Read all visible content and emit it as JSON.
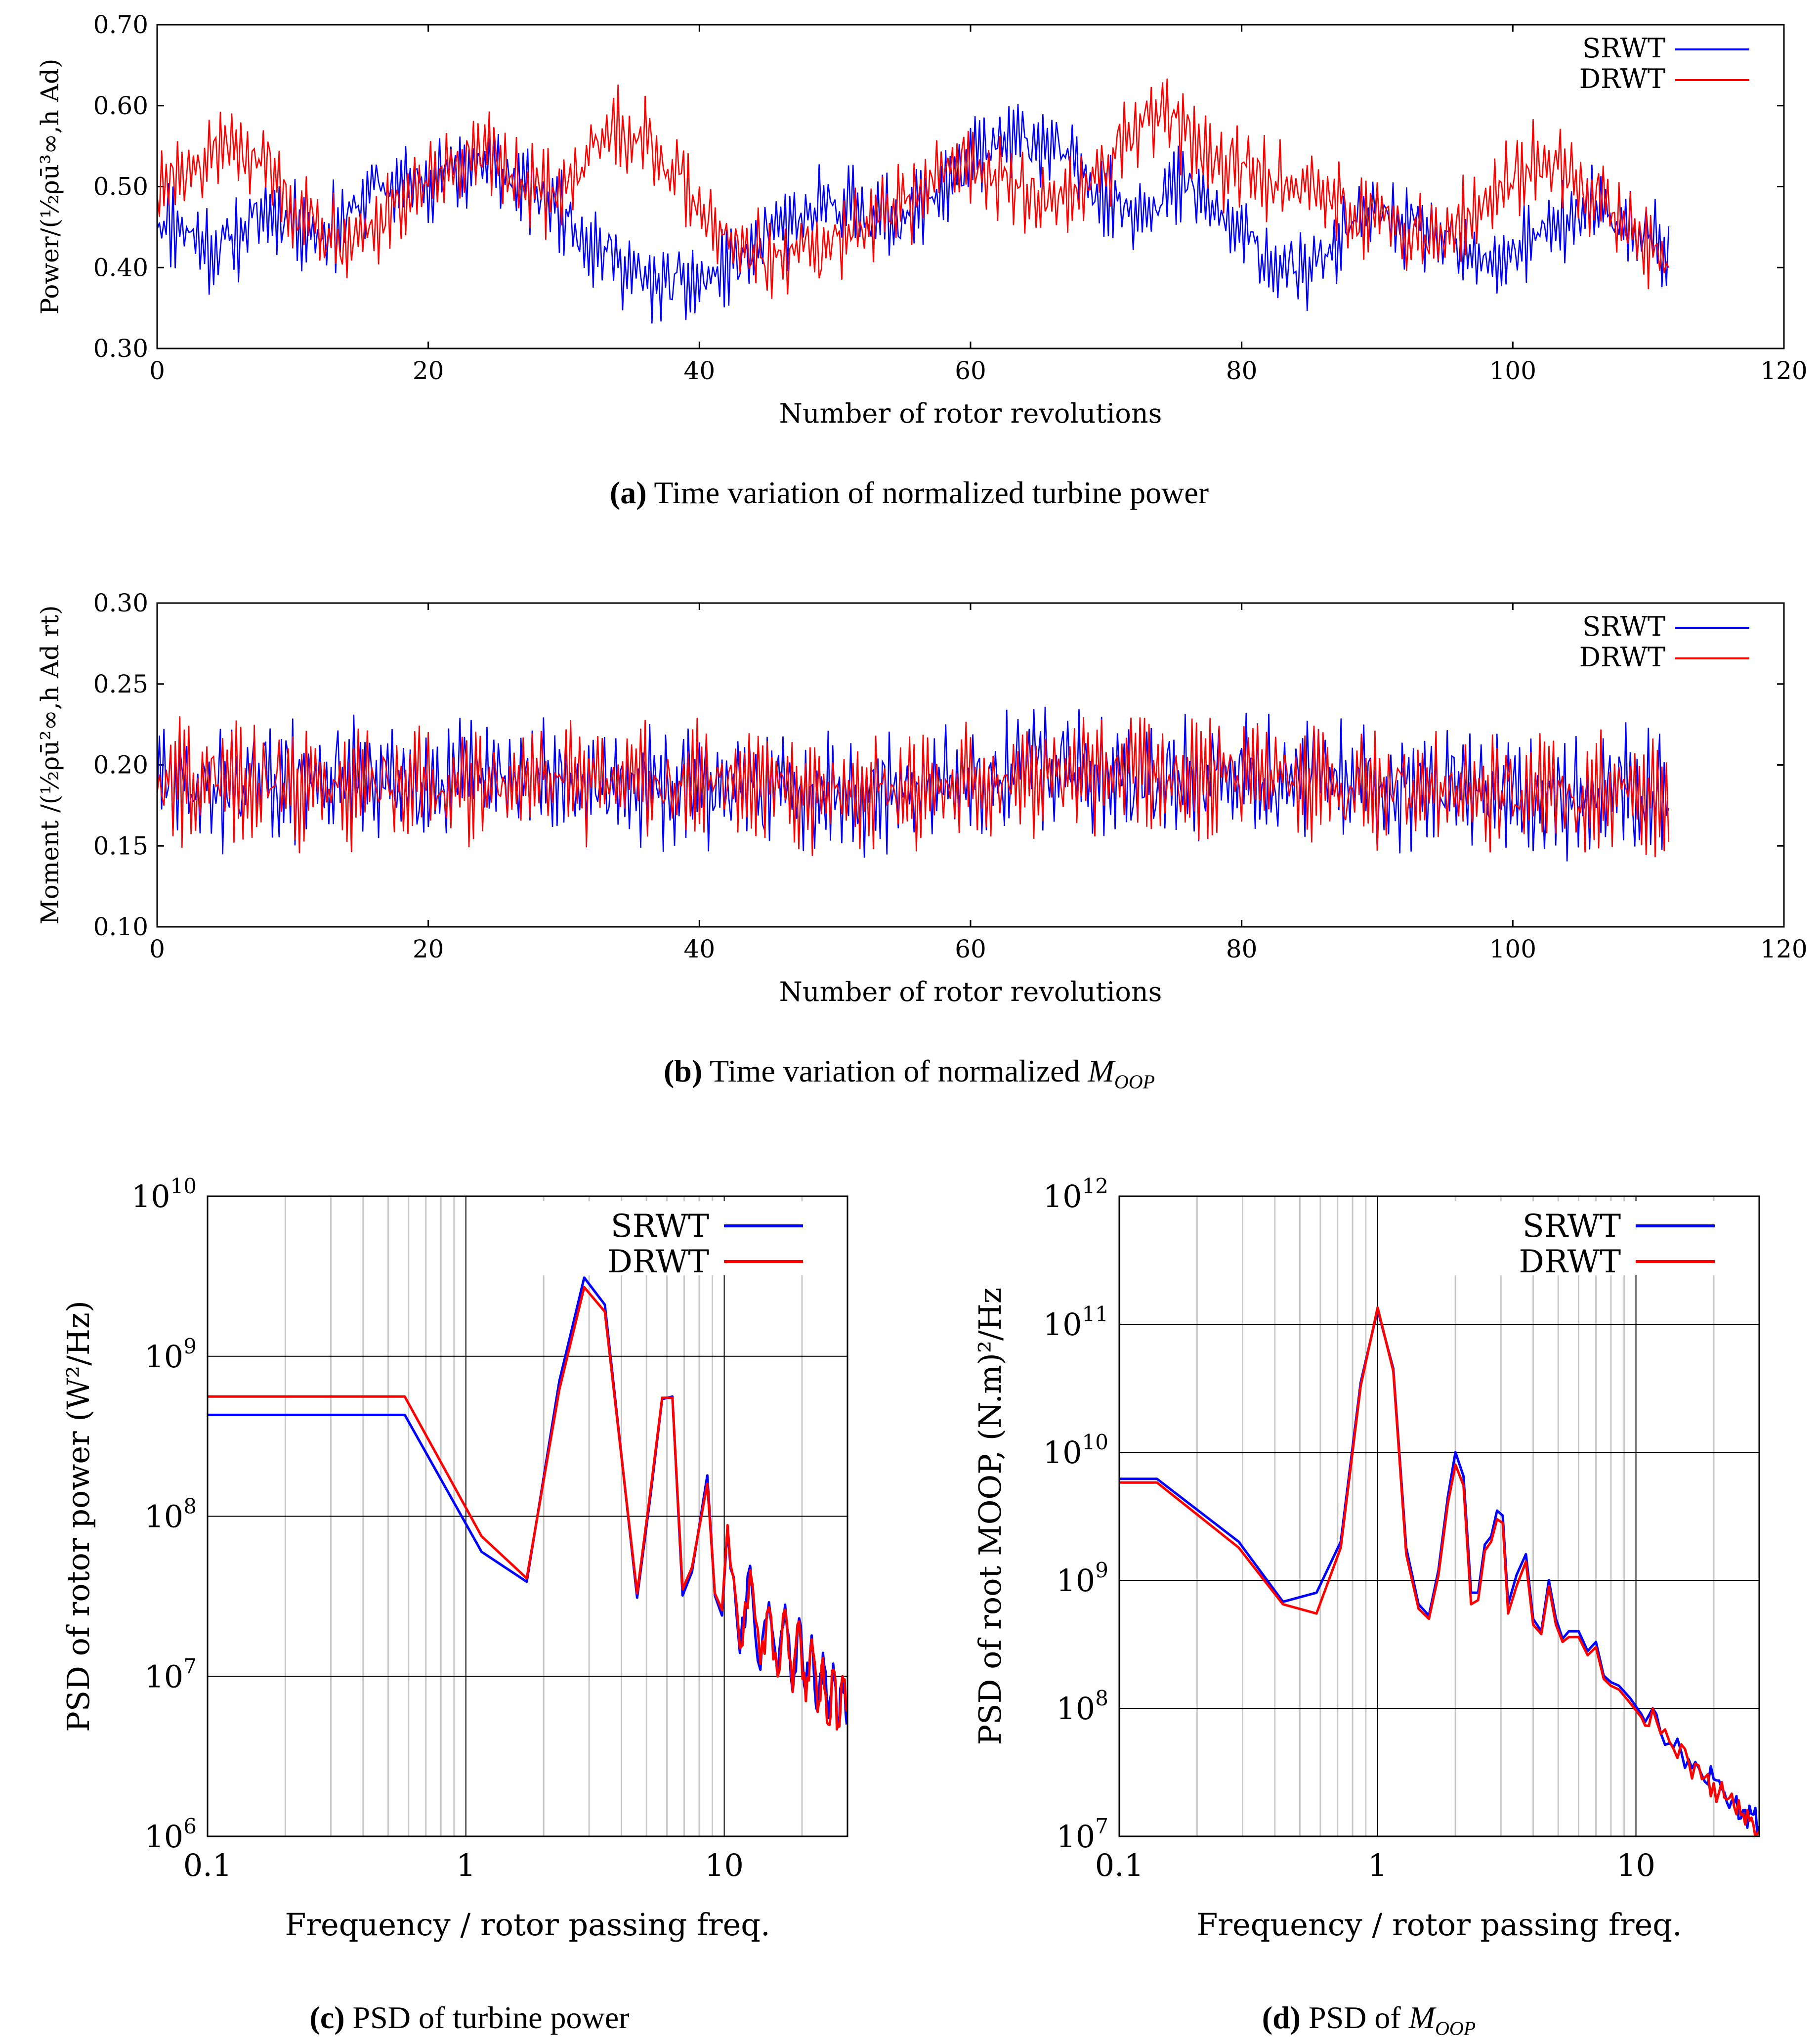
{
  "figure": {
    "captions": {
      "a": {
        "label": "(a)",
        "text": "Time variation of normalized turbine power"
      },
      "b": {
        "label": "(b)",
        "text": "Time variation of normalized ",
        "symbol": "M",
        "sub": "OOP"
      },
      "c": {
        "label": "(c)",
        "text": "PSD of turbine power"
      },
      "d": {
        "label": "(d)",
        "text": "PSD of ",
        "symbol": "M",
        "sub": "OOP"
      }
    }
  },
  "colors": {
    "srwt": "#0000ff",
    "drwt": "#ff0000",
    "grid": "#c8c8c8",
    "axis": "#000000"
  },
  "chart_data": [
    {
      "id": "a",
      "type": "line",
      "title": "",
      "xlabel": "Number of rotor revolutions",
      "ylabel": "Power/(½ρū³∞,h Ad)",
      "xlim": [
        0,
        120
      ],
      "ylim": [
        0.3,
        0.7
      ],
      "xticks": [
        0,
        20,
        40,
        60,
        80,
        100,
        120
      ],
      "xtick_labels": [
        "0",
        "20",
        "40",
        "60",
        "80",
        "100",
        "120"
      ],
      "yticks": [
        0.3,
        0.4,
        0.5,
        0.6,
        0.7
      ],
      "ytick_labels": [
        "0.30",
        "0.40",
        "0.50",
        "0.60",
        "0.70"
      ],
      "legend_position": "top-right",
      "series": [
        {
          "name": "SRWT",
          "color": "#0000ff",
          "x": [
            0,
            2,
            4,
            6,
            8,
            10,
            12,
            14,
            16,
            18,
            20,
            22,
            24,
            26,
            28,
            30,
            32,
            34,
            36,
            38,
            40,
            42,
            44,
            46,
            48,
            50,
            52,
            54,
            56,
            58,
            60,
            62,
            64,
            66,
            68,
            70,
            72,
            74,
            76,
            78,
            80,
            82,
            84,
            86,
            88,
            90,
            92,
            94,
            96,
            98,
            100,
            102,
            104,
            106,
            108,
            110,
            111.5
          ],
          "y": [
            0.46,
            0.45,
            0.42,
            0.44,
            0.47,
            0.46,
            0.44,
            0.46,
            0.5,
            0.5,
            0.51,
            0.52,
            0.53,
            0.51,
            0.49,
            0.47,
            0.43,
            0.41,
            0.38,
            0.38,
            0.38,
            0.4,
            0.42,
            0.45,
            0.46,
            0.48,
            0.47,
            0.46,
            0.47,
            0.5,
            0.53,
            0.55,
            0.56,
            0.55,
            0.52,
            0.49,
            0.47,
            0.49,
            0.5,
            0.47,
            0.44,
            0.41,
            0.39,
            0.41,
            0.45,
            0.47,
            0.45,
            0.44,
            0.42,
            0.4,
            0.42,
            0.44,
            0.46,
            0.47,
            0.45,
            0.44,
            0.42
          ]
        },
        {
          "name": "DRWT",
          "color": "#ff0000",
          "x": [
            0,
            2,
            4,
            6,
            8,
            10,
            12,
            14,
            16,
            18,
            20,
            22,
            24,
            26,
            28,
            30,
            32,
            34,
            36,
            38,
            40,
            42,
            44,
            46,
            48,
            50,
            52,
            54,
            56,
            58,
            60,
            62,
            64,
            66,
            68,
            70,
            72,
            74,
            76,
            78,
            80,
            82,
            84,
            86,
            88,
            90,
            92,
            94,
            96,
            98,
            100,
            102,
            104,
            106,
            108,
            110,
            111.5
          ],
          "y": [
            0.5,
            0.51,
            0.53,
            0.55,
            0.53,
            0.48,
            0.45,
            0.44,
            0.45,
            0.48,
            0.5,
            0.52,
            0.54,
            0.52,
            0.49,
            0.5,
            0.54,
            0.57,
            0.56,
            0.52,
            0.48,
            0.44,
            0.42,
            0.41,
            0.42,
            0.43,
            0.45,
            0.47,
            0.49,
            0.52,
            0.53,
            0.51,
            0.49,
            0.48,
            0.5,
            0.53,
            0.56,
            0.6,
            0.56,
            0.53,
            0.52,
            0.51,
            0.5,
            0.49,
            0.47,
            0.46,
            0.44,
            0.44,
            0.46,
            0.48,
            0.51,
            0.54,
            0.52,
            0.49,
            0.46,
            0.43,
            0.4
          ]
        }
      ]
    },
    {
      "id": "b",
      "type": "line",
      "title": "",
      "xlabel": "Number of rotor revolutions",
      "ylabel": "Moment /(½ρū²∞,h Ad rt)",
      "xlim": [
        0,
        120
      ],
      "ylim": [
        0.1,
        0.3
      ],
      "xticks": [
        0,
        20,
        40,
        60,
        80,
        100,
        120
      ],
      "xtick_labels": [
        "0",
        "20",
        "40",
        "60",
        "80",
        "100",
        "120"
      ],
      "yticks": [
        0.1,
        0.15,
        0.2,
        0.25,
        0.3
      ],
      "ytick_labels": [
        "0.10",
        "0.15",
        "0.20",
        "0.25",
        "0.30"
      ],
      "legend_position": "top-right",
      "series": [
        {
          "name": "SRWT",
          "color": "#0000ff",
          "x": [
            0,
            4,
            8,
            12,
            16,
            20,
            24,
            28,
            32,
            36,
            40,
            44,
            48,
            52,
            56,
            60,
            64,
            68,
            72,
            76,
            80,
            84,
            88,
            92,
            96,
            100,
            104,
            108,
            111.5
          ],
          "y": [
            0.19,
            0.185,
            0.19,
            0.19,
            0.19,
            0.19,
            0.19,
            0.19,
            0.19,
            0.185,
            0.185,
            0.185,
            0.185,
            0.185,
            0.185,
            0.19,
            0.2,
            0.195,
            0.19,
            0.19,
            0.195,
            0.19,
            0.19,
            0.185,
            0.185,
            0.185,
            0.18,
            0.185,
            0.185
          ]
        },
        {
          "name": "DRWT",
          "color": "#ff0000",
          "x": [
            0,
            4,
            8,
            12,
            16,
            20,
            24,
            28,
            32,
            36,
            40,
            44,
            48,
            52,
            56,
            60,
            64,
            68,
            72,
            76,
            80,
            84,
            88,
            92,
            96,
            100,
            104,
            108,
            111.5
          ],
          "y": [
            0.19,
            0.19,
            0.19,
            0.185,
            0.19,
            0.19,
            0.19,
            0.19,
            0.19,
            0.19,
            0.19,
            0.185,
            0.185,
            0.185,
            0.185,
            0.19,
            0.19,
            0.195,
            0.195,
            0.195,
            0.19,
            0.19,
            0.185,
            0.185,
            0.185,
            0.185,
            0.18,
            0.18,
            0.185
          ]
        }
      ]
    },
    {
      "id": "c",
      "type": "line",
      "title": "",
      "xlabel": "Frequency / rotor passing freq.",
      "ylabel": "PSD of rotor power (W²/Hz)",
      "xscale": "log",
      "yscale": "log",
      "xlim": [
        0.1,
        30
      ],
      "ylim": [
        1000000.0,
        10000000000.0
      ],
      "xtick_labels": [
        "0.1",
        "1",
        "10"
      ],
      "ytick_labels": [
        "10",
        "10",
        "10",
        "10",
        "10"
      ],
      "ytick_exponents": [
        "6",
        "7",
        "8",
        "9",
        "10"
      ],
      "legend_position": "top-right",
      "series": [
        {
          "name": "SRWT",
          "color": "#0000ff",
          "x": [
            0.1,
            0.58,
            1.15,
            1.72,
            2.3,
            2.87,
            3.45,
            4.6,
            5.2,
            5.75,
            6.3,
            6.9,
            7.5,
            8.6,
            9.2,
            9.8,
            10.3,
            11.5,
            12.6,
            13.8,
            14.9,
            16.1,
            17.2,
            18.4,
            19.5,
            20.7,
            21.8,
            23.0,
            24.1,
            25.3,
            26.4,
            27.6,
            28.7,
            29.8
          ],
          "y": [
            430000000.0,
            430000000.0,
            60000000.0,
            39000000.0,
            700000000.0,
            3100000000.0,
            2100000000.0,
            31000000.0,
            140000000.0,
            540000000.0,
            560000000.0,
            32000000.0,
            45000000.0,
            180000000.0,
            32000000.0,
            24000000.0,
            85000000.0,
            14000000.0,
            49000000.0,
            11000000.0,
            29000000.0,
            10000000.0,
            28000000.0,
            8000000.0,
            23000000.0,
            8000000.0,
            18000000.0,
            6000000.0,
            14000000.0,
            5500000.0,
            12000000.0,
            5000000.0,
            10000000.0,
            5000000.0
          ]
        },
        {
          "name": "DRWT",
          "color": "#ff0000",
          "x": [
            0.1,
            0.58,
            1.15,
            1.72,
            2.3,
            2.87,
            3.45,
            4.6,
            5.2,
            5.75,
            6.3,
            6.9,
            7.5,
            8.6,
            9.2,
            9.8,
            10.3,
            11.5,
            12.6,
            13.8,
            14.9,
            16.1,
            17.2,
            18.4,
            19.5,
            20.7,
            21.8,
            23.0,
            24.1,
            25.3,
            26.4,
            27.6,
            28.7,
            29.8
          ],
          "y": [
            560000000.0,
            560000000.0,
            75000000.0,
            41000000.0,
            620000000.0,
            2700000000.0,
            1900000000.0,
            33000000.0,
            150000000.0,
            550000000.0,
            550000000.0,
            35000000.0,
            48000000.0,
            160000000.0,
            33000000.0,
            26000000.0,
            88000000.0,
            15000000.0,
            46000000.0,
            12000000.0,
            27000000.0,
            10000000.0,
            26000000.0,
            8000000.0,
            22000000.0,
            7000000.0,
            17000000.0,
            6000000.0,
            13000000.0,
            5000000.0,
            11000000.0,
            5000000.0,
            10000000.0,
            6000000.0
          ]
        }
      ]
    },
    {
      "id": "d",
      "type": "line",
      "title": "",
      "xlabel": "Frequency / rotor passing freq.",
      "ylabel": "PSD of root MOOP, (N.m)²/Hz",
      "xscale": "log",
      "yscale": "log",
      "xlim": [
        0.1,
        30
      ],
      "ylim": [
        10000000.0,
        1000000000000.0
      ],
      "xtick_labels": [
        "0.1",
        "1",
        "10"
      ],
      "ytick_labels": [
        "10",
        "10",
        "10",
        "10",
        "10",
        "10"
      ],
      "ytick_exponents": [
        "7",
        "8",
        "9",
        "10",
        "11",
        "12"
      ],
      "legend_position": "top-right",
      "series": [
        {
          "name": "SRWT",
          "color": "#0000ff",
          "x": [
            0.1,
            0.14,
            0.29,
            0.43,
            0.58,
            0.72,
            0.86,
            1.0,
            1.15,
            1.29,
            1.44,
            1.58,
            1.72,
            1.87,
            2.0,
            2.15,
            2.3,
            2.45,
            2.6,
            2.75,
            2.9,
            3.05,
            3.2,
            3.45,
            3.75,
            4.0,
            4.3,
            4.6,
            4.9,
            5.2,
            5.5,
            6.0,
            6.5,
            7.0,
            7.5,
            8.0,
            8.6,
            9.5,
            10.5,
            12.0,
            14.0,
            16.0,
            18.0,
            20.0,
            22.0,
            24.0,
            26.0,
            28.0,
            30.0
          ],
          "y": [
            6200000000.0,
            6200000000.0,
            2000000000.0,
            680000000.0,
            800000000.0,
            2000000000.0,
            35000000000.0,
            130000000000.0,
            45000000000.0,
            1800000000.0,
            650000000.0,
            530000000.0,
            1200000000.0,
            4500000000.0,
            10000000000.0,
            6500000000.0,
            800000000.0,
            800000000.0,
            1900000000.0,
            2200000000.0,
            3500000000.0,
            3200000000.0,
            650000000.0,
            1100000000.0,
            1600000000.0,
            500000000.0,
            400000000.0,
            1000000000.0,
            500000000.0,
            350000000.0,
            400000000.0,
            400000000.0,
            280000000.0,
            330000000.0,
            180000000.0,
            160000000.0,
            150000000.0,
            120000000.0,
            90000000.0,
            90000000.0,
            50000000.0,
            40000000.0,
            30000000.0,
            28000000.0,
            22000000.0,
            18000000.0,
            16000000.0,
            15000000.0,
            12000000.0
          ]
        },
        {
          "name": "DRWT",
          "color": "#ff0000",
          "x": [
            0.1,
            0.14,
            0.29,
            0.43,
            0.58,
            0.72,
            0.86,
            1.0,
            1.15,
            1.29,
            1.44,
            1.58,
            1.72,
            1.87,
            2.0,
            2.15,
            2.3,
            2.45,
            2.6,
            2.75,
            2.9,
            3.05,
            3.2,
            3.45,
            3.75,
            4.0,
            4.3,
            4.6,
            4.9,
            5.2,
            5.5,
            6.0,
            6.5,
            7.0,
            7.5,
            8.0,
            8.6,
            9.5,
            10.5,
            12.0,
            14.0,
            16.0,
            18.0,
            20.0,
            22.0,
            24.0,
            26.0,
            28.0,
            30.0
          ],
          "y": [
            5800000000.0,
            5800000000.0,
            1800000000.0,
            650000000.0,
            550000000.0,
            1800000000.0,
            33000000000.0,
            135000000000.0,
            43000000000.0,
            1600000000.0,
            600000000.0,
            500000000.0,
            1100000000.0,
            4000000000.0,
            8000000000.0,
            5500000000.0,
            650000000.0,
            700000000.0,
            1700000000.0,
            2000000000.0,
            3000000000.0,
            2800000000.0,
            550000000.0,
            900000000.0,
            1400000000.0,
            450000000.0,
            380000000.0,
            900000000.0,
            450000000.0,
            330000000.0,
            360000000.0,
            360000000.0,
            260000000.0,
            300000000.0,
            170000000.0,
            150000000.0,
            140000000.0,
            110000000.0,
            85000000.0,
            80000000.0,
            48000000.0,
            38000000.0,
            28000000.0,
            26000000.0,
            20000000.0,
            17000000.0,
            15000000.0,
            14000000.0,
            11000000.0
          ]
        }
      ]
    }
  ]
}
